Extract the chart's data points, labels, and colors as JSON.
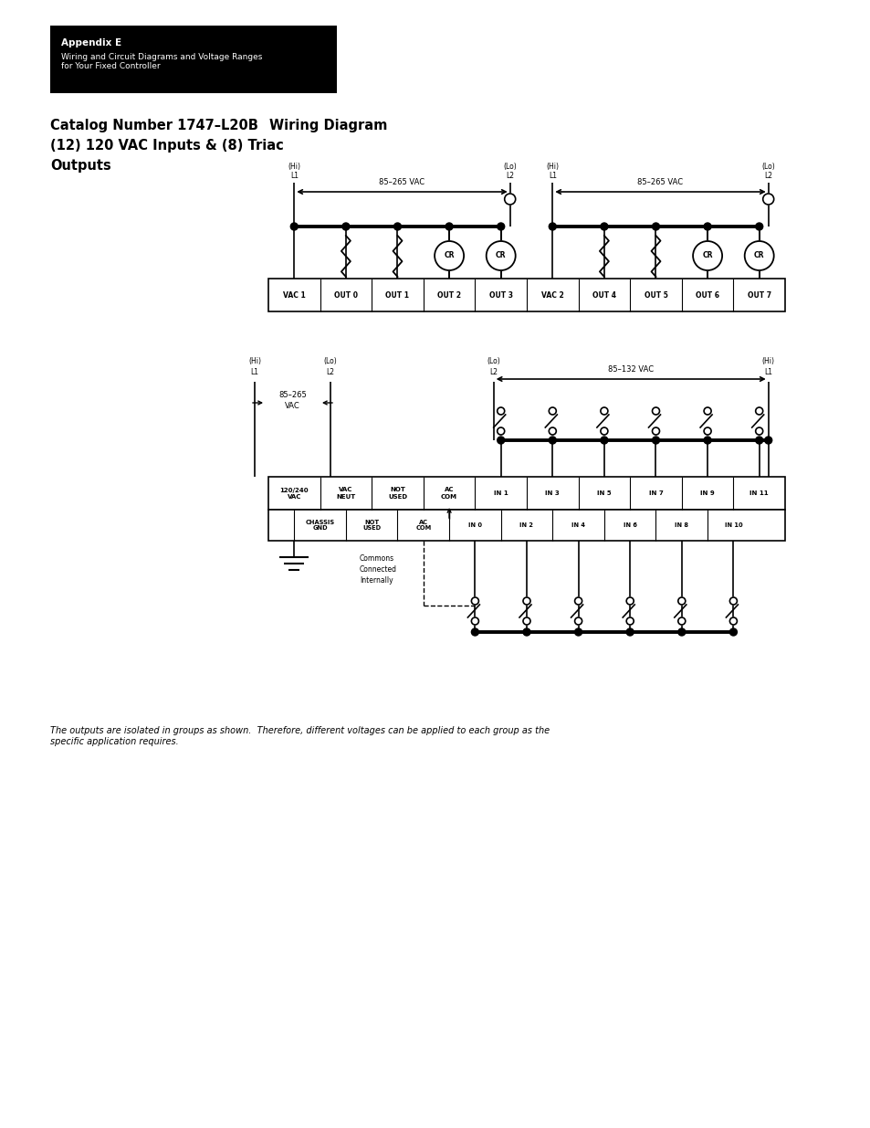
{
  "page_bg": "#ffffff",
  "header_bg": "#000000",
  "header_text_color": "#ffffff",
  "header_bold": "Appendix E",
  "header_sub": "Wiring and Circuit Diagrams and Voltage Ranges\nfor Your Fixed Controller",
  "title_left_line1": "Catalog Number 1747–L20B",
  "title_left_line2": "(12) 120 VAC Inputs & (8) Triac",
  "title_left_line3": "Outputs",
  "title_right": "Wiring Diagram",
  "footnote": "The outputs are isolated in groups as shown.  Therefore, different voltages can be applied to each group as the\nspecific application requires.",
  "top_term_labels": [
    "VAC 1",
    "OUT 0",
    "OUT 1",
    "OUT 2",
    "OUT 3",
    "VAC 2",
    "OUT 4",
    "OUT 5",
    "OUT 6",
    "OUT 7"
  ],
  "bot_term_top_labels": [
    "120/240\nVAC",
    "VAC\nNEUT",
    "NOT\nUSED",
    "AC\nCOM",
    "IN 1",
    "IN 3",
    "IN 5",
    "IN 7",
    "IN 9",
    "IN 11"
  ],
  "bot_term_bot_labels": [
    "CHASSIS\nGND",
    "NOT\nUSED",
    "AC\nCOM",
    "IN 0",
    "IN 2",
    "IN 4",
    "IN 6",
    "IN 8",
    "IN 10"
  ]
}
